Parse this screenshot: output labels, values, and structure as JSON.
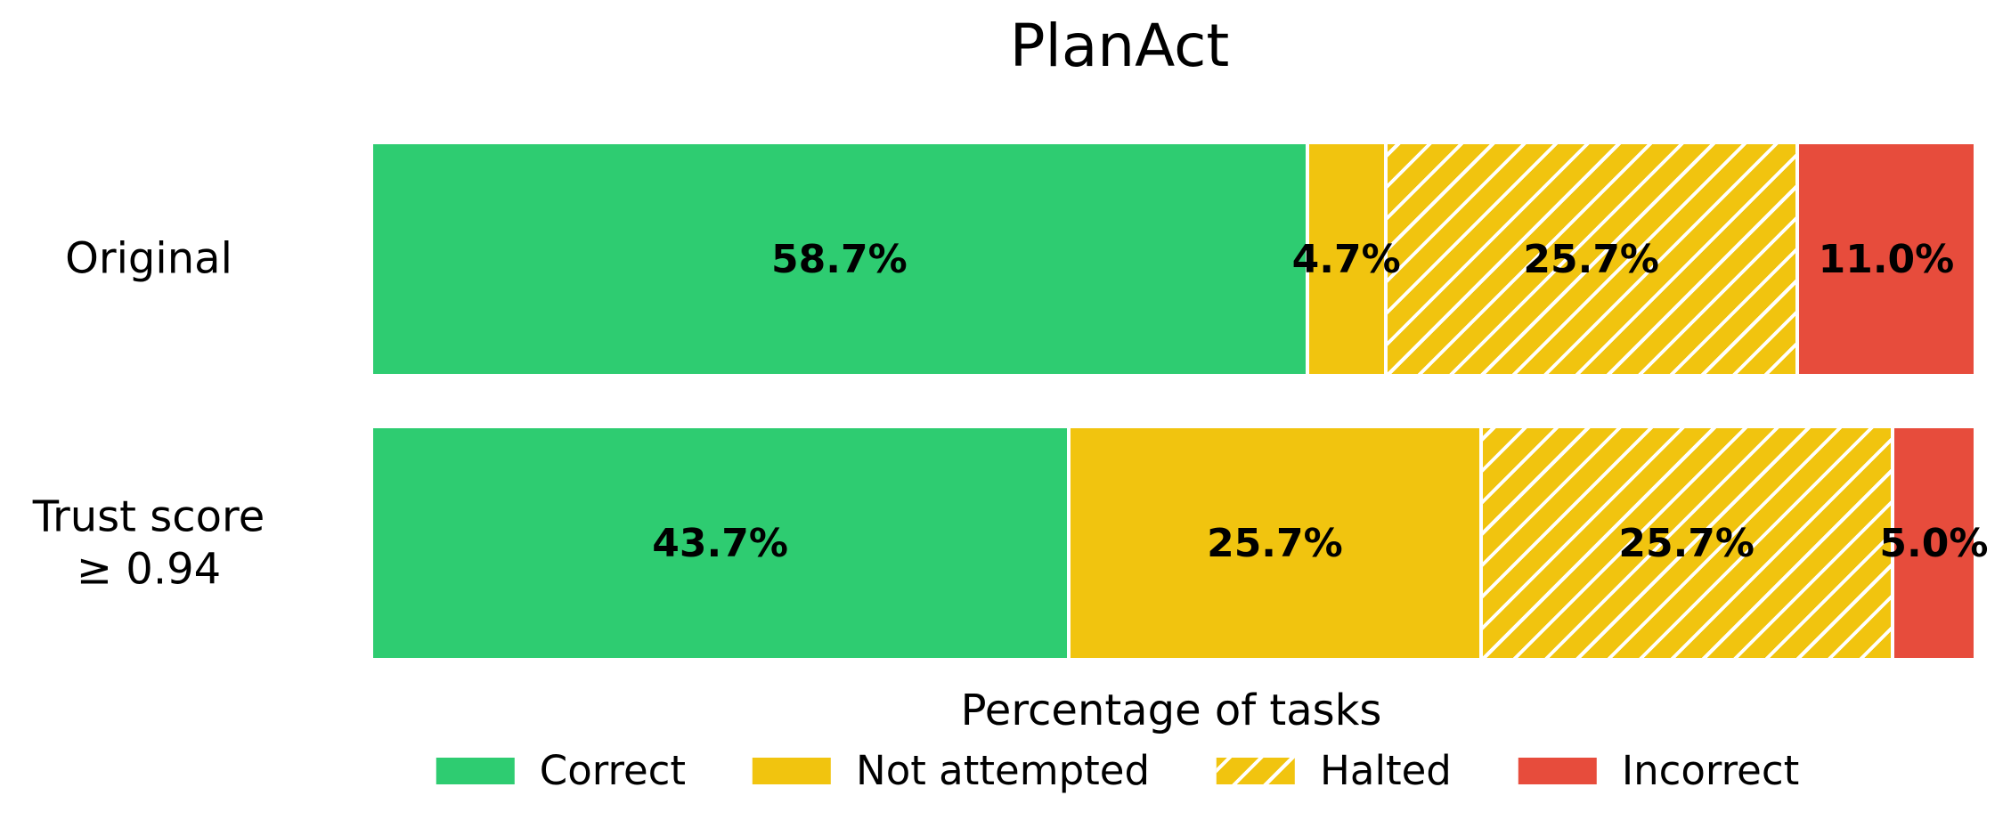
{
  "figure": {
    "background": "#ffffff"
  },
  "chart_data": {
    "type": "bar",
    "orientation": "horizontal",
    "stacked": true,
    "title": "PlanAct",
    "xlabel": "Percentage of tasks",
    "categories": [
      "Original",
      "Trust score\n≥ 0.94"
    ],
    "series": [
      {
        "name": "Correct",
        "color": "#2ecc71",
        "hatch": null,
        "values": [
          58.7,
          43.7
        ],
        "labels": [
          "58.7%",
          "43.7%"
        ]
      },
      {
        "name": "Not attempted",
        "color": "#f1c40f",
        "hatch": null,
        "values": [
          4.7,
          25.7
        ],
        "labels": [
          "4.7%",
          "25.7%"
        ]
      },
      {
        "name": "Halted",
        "color": "#f1c40f",
        "hatch": "/",
        "values": [
          25.7,
          25.7
        ],
        "labels": [
          "25.7%",
          "25.7%"
        ]
      },
      {
        "name": "Incorrect",
        "color": "#e74c3c",
        "hatch": null,
        "values": [
          11.0,
          5.0
        ],
        "labels": [
          "11.0%",
          "5.0%"
        ]
      }
    ],
    "bar_value_label_color": "#000000",
    "hatch_color": "#ffffff",
    "xlim": [
      0,
      100
    ],
    "grid": false,
    "legend": {
      "position": "bottom",
      "entries": [
        "Correct",
        "Not attempted",
        "Halted",
        "Incorrect"
      ]
    }
  }
}
